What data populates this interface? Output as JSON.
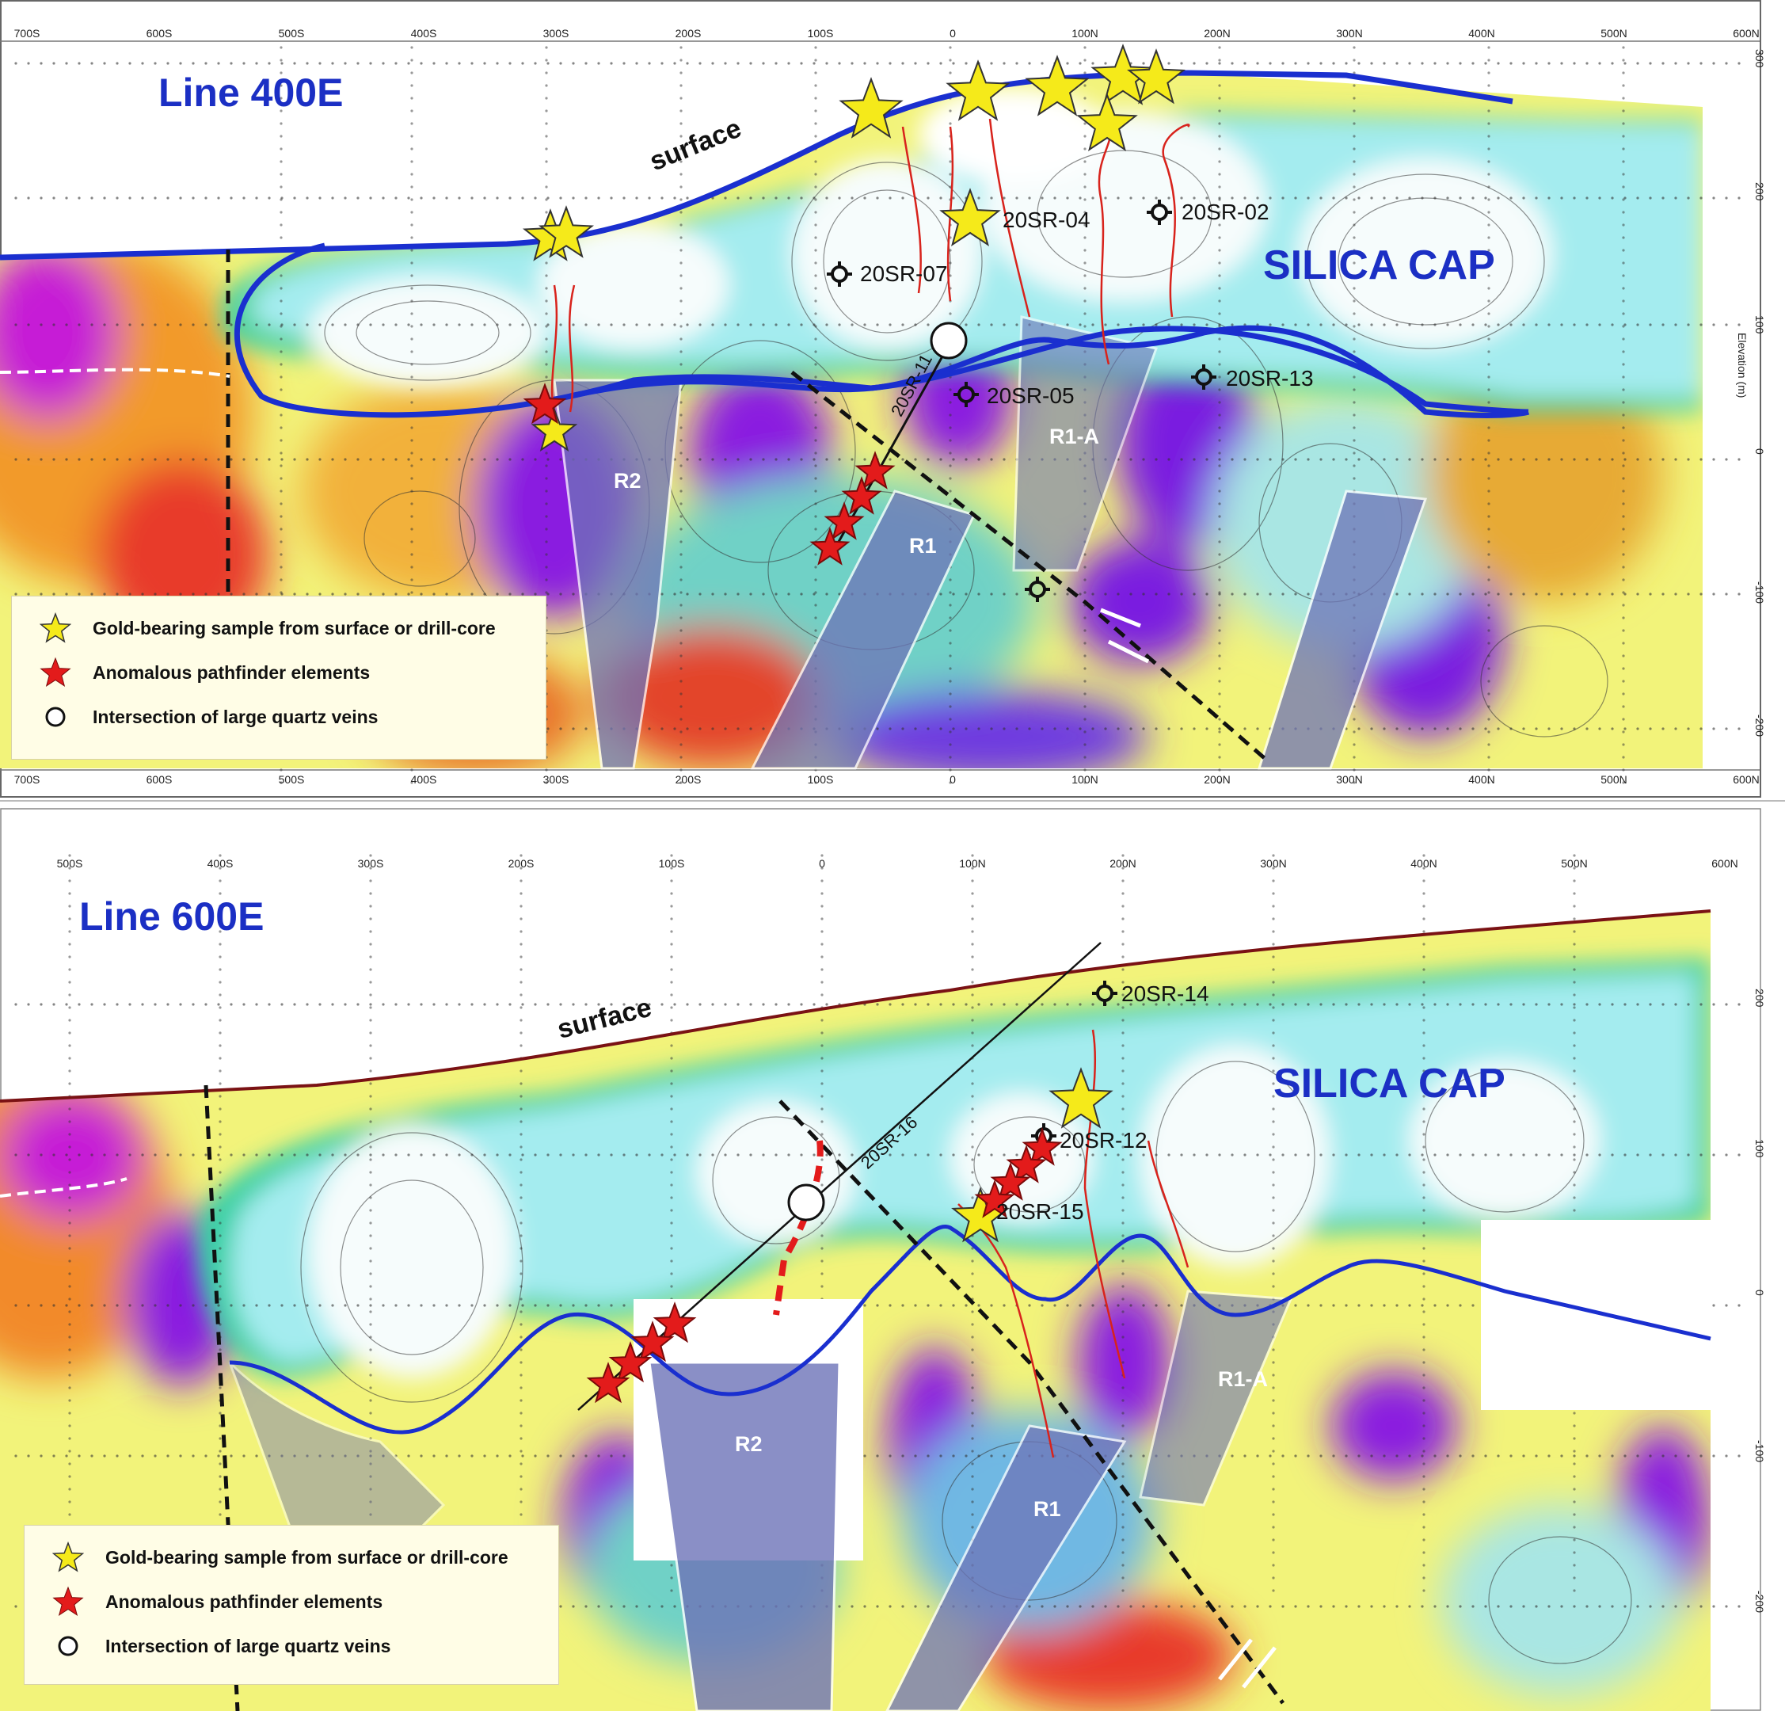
{
  "sections": [
    {
      "line_label": "Line 400E",
      "surface_label": "surface",
      "cap_label": "SILICA CAP",
      "x_ticks": [
        "700S",
        "600S",
        "500S",
        "400S",
        "300S",
        "200S",
        "100S",
        "0",
        "100N",
        "200N",
        "300N",
        "400N",
        "500N",
        "600N"
      ],
      "y_ticks": [
        "300",
        "200",
        "100",
        "0",
        "-100",
        "-200"
      ],
      "y_axis_label": "Elevation (m)",
      "drill_holes": [
        "20SR-07",
        "20SR-04",
        "20SR-02",
        "20SR-13",
        "20SR-05",
        "20SR-11"
      ],
      "zones": [
        "R2",
        "R1",
        "R1-A"
      ]
    },
    {
      "line_label": "Line 600E",
      "surface_label": "surface",
      "cap_label": "SILICA CAP",
      "x_ticks": [
        "500S",
        "400S",
        "300S",
        "200S",
        "100S",
        "0",
        "100N",
        "200N",
        "300N",
        "400N",
        "500N",
        "600N"
      ],
      "y_ticks": [
        "200",
        "100",
        "0",
        "-100",
        "-200"
      ],
      "y_axis_label": "",
      "drill_holes": [
        "20SR-14",
        "20SR-16",
        "20SR-12",
        "20SR-15"
      ],
      "zones": [
        "R2",
        "R1",
        "R1-A"
      ]
    }
  ],
  "legend": {
    "gold": "Gold-bearing sample from surface or drill-core",
    "pathfinder": "Anomalous pathfinder elements",
    "quartz": "Intersection of large quartz veins"
  },
  "colors": {
    "surface_line": "#1a2fcf",
    "gold_star": "#f5ea1a",
    "pathfinder_star": "#e31b1b",
    "zone_fill": "#6e74b8",
    "label_blue": "#1b2fc4",
    "flow_arrow": "#d8231c"
  }
}
